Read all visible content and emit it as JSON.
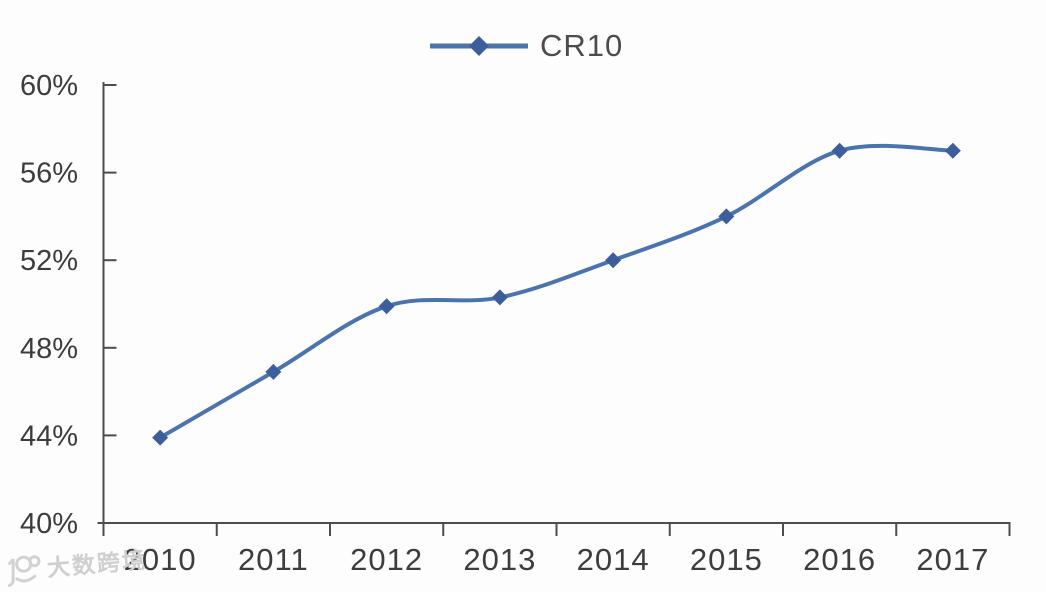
{
  "legend": {
    "label": "CR10"
  },
  "watermark": {
    "text": "大数跨境"
  },
  "chart_data": {
    "type": "line",
    "title": "",
    "xlabel": "",
    "ylabel": "",
    "categories": [
      "2010",
      "2011",
      "2012",
      "2013",
      "2014",
      "2015",
      "2016",
      "2017"
    ],
    "series": [
      {
        "name": "CR10",
        "values": [
          43.9,
          46.9,
          49.9,
          50.3,
          52.0,
          54.0,
          57.0,
          57.0
        ]
      }
    ],
    "ylim": [
      40,
      60
    ],
    "y_ticks": [
      40,
      44,
      48,
      52,
      56,
      60
    ],
    "y_tick_labels": [
      "40%",
      "44%",
      "48%",
      "52%",
      "56%",
      "60%"
    ],
    "grid": false,
    "legend_position": "top-center",
    "marker": "diamond",
    "line_smooth": true,
    "colors": {
      "line": "#4b74ae",
      "marker": "#3c5f9b",
      "axis": "#4d4d4d",
      "tick_label": "#3d3d3d",
      "watermark": "#cfcfcf"
    }
  }
}
